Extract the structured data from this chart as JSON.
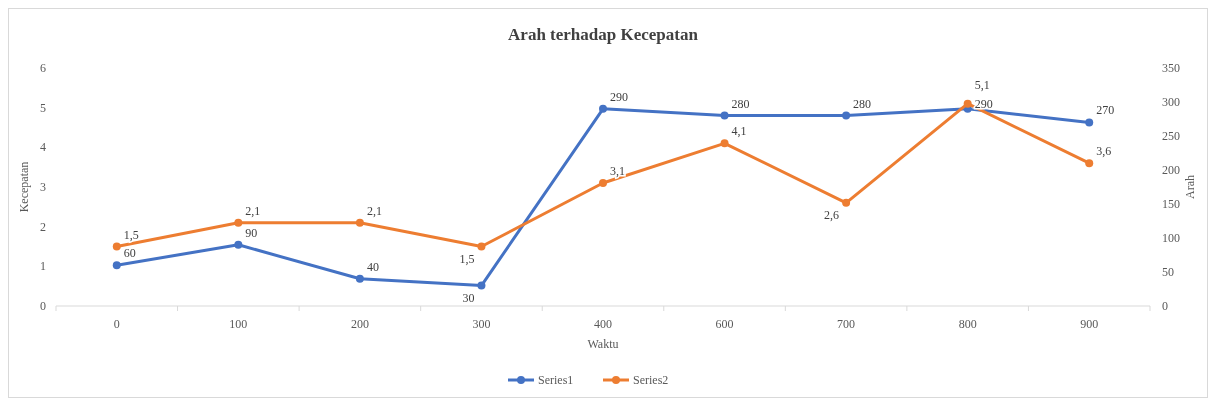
{
  "chart_data": {
    "type": "line",
    "title": "Arah terhadap  Kecepatan",
    "xlabel": "Waktu",
    "ylabel": "Kecepatan",
    "y2label": "Arah",
    "categories": [
      "0",
      "100",
      "200",
      "300",
      "400",
      "600",
      "700",
      "800",
      "900"
    ],
    "series": [
      {
        "name": "Series1",
        "color": "#4472c4",
        "axis": "y2",
        "values": [
          60,
          90,
          40,
          30,
          290,
          280,
          280,
          290,
          270
        ],
        "value_labels": [
          "60",
          "90",
          "40",
          "30",
          "290",
          "280",
          "280",
          "290",
          "270"
        ]
      },
      {
        "name": "Series2",
        "color": "#ed7d31",
        "values": [
          1.5,
          2.1,
          2.1,
          1.5,
          3.1,
          4.1,
          2.6,
          5.1,
          3.6
        ],
        "value_labels": [
          "1,5",
          "2,1",
          "2,1",
          "1,5",
          "3,1",
          "4,1",
          "2,6",
          "5,1",
          "3,6"
        ]
      }
    ],
    "ylim": [
      0,
      6
    ],
    "yticks": [
      0,
      1,
      2,
      3,
      4,
      5,
      6
    ],
    "y2lim": [
      0,
      350
    ],
    "y2ticks": [
      0,
      50,
      100,
      150,
      200,
      250,
      300,
      350
    ],
    "legend": "bottom",
    "marker": "circle",
    "line_style": "solid",
    "grid": false
  }
}
